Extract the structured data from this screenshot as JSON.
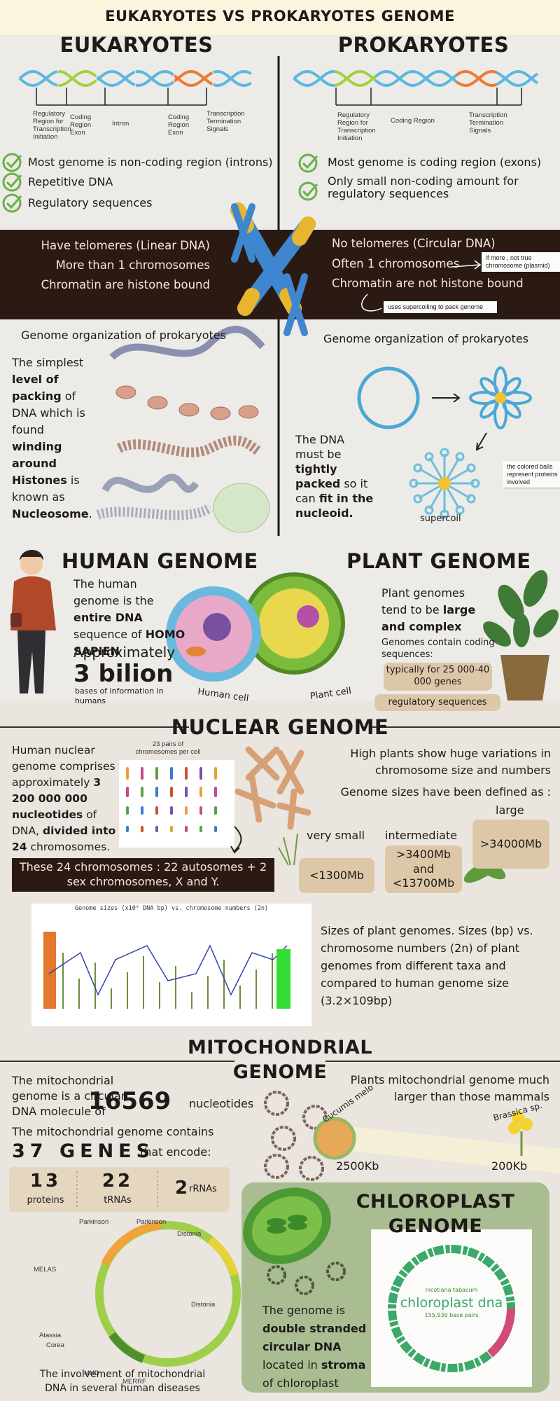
{
  "header": {
    "title": "EUKARYOTES VS PROKARYOTES GENOME"
  },
  "eukaryotes": {
    "heading": "EUKARYOTES",
    "dna_labels": [
      "Regulatory Region for Transcription Initiation",
      "Coding Region Exon",
      "Intron",
      "Coding Region Exon",
      "Transcription Termination Signals"
    ],
    "features": [
      "Most genome is non-coding region (introns)",
      "Repetitive DNA",
      "Regulatory sequences"
    ],
    "traits": [
      "Have telomeres (Linear DNA)",
      "More than 1 chromosomes",
      "Chromatin are histone bound"
    ]
  },
  "prokaryotes": {
    "heading": "PROKARYOTES",
    "dna_labels": [
      "Regulatory Region for Transcription Initiation",
      "Coding Region",
      "Transcription Termination Signals"
    ],
    "features": [
      "Most genome is coding region (exons)",
      "Only small non-coding amount for regulatory sequences"
    ],
    "traits": [
      "No telomeres (Circular DNA)",
      "Often 1 chromosomes",
      "Chromatin are not histone bound"
    ],
    "notes": [
      "if more , not true chromosome (plasmid)",
      "uses supercoiling to pack genome"
    ]
  },
  "organization_left": {
    "heading": "Genome organization of prokaryotes",
    "text": [
      "The simplest ",
      {
        "text": "level of packing",
        "bold": true
      },
      " of DNA which is found ",
      {
        "text": "winding around Histones",
        "bold": true
      },
      " is known as ",
      {
        "text": "Nucleosome",
        "bold": true
      },
      "."
    ]
  },
  "organization_right": {
    "heading": "Genome organization of prokaryotes",
    "text": [
      "The DNA must be ",
      {
        "text": "tightly packed",
        "bold": true
      },
      " so it can ",
      {
        "text": "fit in the nucleoid.",
        "bold": true
      }
    ],
    "note": "the colored balls represent proteins involved",
    "label": "supercoil"
  },
  "human": {
    "heading": "HUMAN GENOME",
    "text": [
      "The human genome is the ",
      {
        "text": "entire DNA",
        "bold": true
      },
      " sequence of ",
      {
        "text": "HOMO SAPIEN",
        "bold": true
      }
    ],
    "approx": "Approximately",
    "amount": "3 bilion",
    "unit": "bases of information in humans",
    "cell_label": "Human cell"
  },
  "plant": {
    "heading": "PLANT GENOME",
    "text": [
      "Plant genomes tend to be ",
      {
        "text": "large and complex",
        "bold": true
      }
    ],
    "contain": "Genomes contain coding sequences:",
    "genes": "typically for 25 000-40 000 genes",
    "regulatory": "regulatory sequences",
    "cell_label": "Plant cell"
  },
  "nuclear": {
    "heading": "NUCLEAR GENOME",
    "text": [
      "Human nuclear genome comprises approximately ",
      {
        "text": "3 200 000 000 nucleotides",
        "bold": true
      },
      " of DNA, ",
      {
        "text": "divided into 24",
        "bold": true
      },
      " chromosomes."
    ],
    "karyotype_caption": "23 pairs of chromosomes per cell",
    "summary": "These 24 chromosomes : 22 autosomes + 2 sex chromosomes, X and Y.",
    "variation": "High plants show huge variations in chromosome size and numbers",
    "defined": "Genome sizes have been defined as :",
    "classes": [
      {
        "name": "very small",
        "size": "<1300Mb"
      },
      {
        "name": "intermediate",
        "size": ">3400Mb and <13700Mb"
      },
      {
        "name": "large",
        "size": ">34000Mb"
      }
    ]
  },
  "plant_sizes": {
    "figure_title": "Genome sizes (x10⁹ DNA bp) vs. chromosome numbers (2n)",
    "text": "Sizes of plant genomes. Sizes (bp) vs. chromosome numbers (2n) of plant genomes from different taxa and compared to human genome size (3.2×109bp)"
  },
  "mito": {
    "heading_lines": [
      "MITOCHONDRIAL",
      "GENOME"
    ],
    "intro": "The mitochondrial genome is a circular DNA molecule of",
    "length": "16569",
    "length_unit": "nucleotides",
    "contains": "The mitochondrial genome contains",
    "genes": "37 GENES",
    "encode": "that encode:",
    "products": [
      {
        "count": "13",
        "name": "proteins"
      },
      {
        "count": "22",
        "name": "tRNAs"
      },
      {
        "count": "2",
        "name": "rRNAs"
      }
    ],
    "diseases": [
      "Parkinson",
      "Parkinson",
      "Distonia",
      "MELAS",
      "Distonia",
      "Atassia",
      "Corea",
      "MND",
      "MERRF"
    ],
    "caption": "The involvement of mitochondrial DNA in several human diseases",
    "plants": "Plants mitochondrial genome much larger than those mammals",
    "species": [
      {
        "name": "Cucumis melo",
        "size": "2500Kb"
      },
      {
        "name": "Brassica sp.",
        "size": "200Kb"
      }
    ]
  },
  "chloroplast": {
    "heading": "CHLOROPLAST GENOME",
    "text": [
      "The genome is ",
      {
        "text": "double stranded circular DNA",
        "bold": true
      },
      " located in ",
      {
        "text": "stroma",
        "bold": true
      },
      " of chloroplast"
    ],
    "map_title": "chloroplast dna",
    "map_species": "nicotiana tabacum",
    "map_size": "155,939 base pairs"
  }
}
